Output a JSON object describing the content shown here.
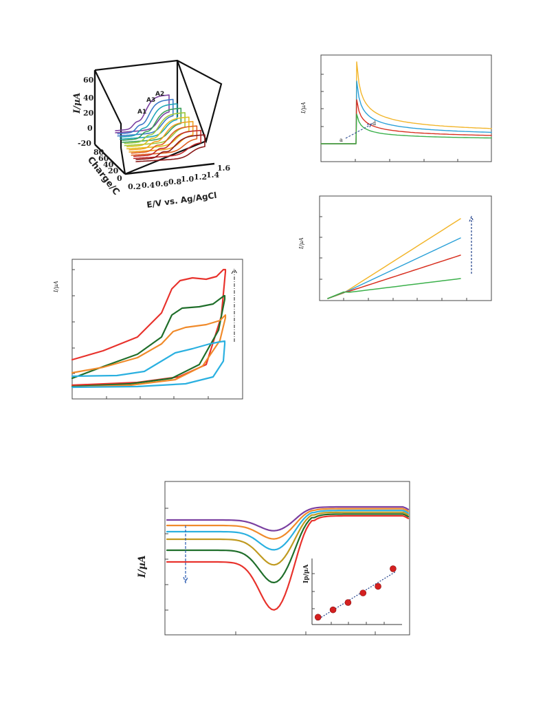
{
  "chart_data": [
    {
      "id": "panel-3d",
      "type": "line",
      "title": "",
      "ylabel": "I/µA",
      "xlabel": "E/V vs. Ag/AgCl",
      "zlabel": "Charge/C",
      "y_ticks": [
        "60",
        "40",
        "20",
        "0",
        "-20"
      ],
      "x_ticks": [
        "0.2",
        "0.4",
        "0.6",
        "0.8",
        "1.0",
        "1.2",
        "1.4",
        "1.6"
      ],
      "z_ticks": [
        "80",
        "60",
        "40",
        "20",
        "0"
      ],
      "annotations": [
        "A1",
        "A2",
        "A3"
      ],
      "series_colors": [
        "#7a3fa0",
        "#3a78c8",
        "#1fa6b8",
        "#3aa05a",
        "#9cc83a",
        "#e0c020",
        "#f0a020",
        "#e06020",
        "#c02828",
        "#8a1818"
      ]
    },
    {
      "id": "panel-cv",
      "type": "line",
      "ylabel": "I/µA",
      "series_colors": [
        "#e8322c",
        "#1f6e2a",
        "#f08a2a",
        "#2ab0e0"
      ]
    },
    {
      "id": "panel-chrono",
      "type": "line",
      "ylabel": "I/µA",
      "annotations": [
        "a",
        "d"
      ],
      "series_colors": [
        "#f2b52a",
        "#2aa0d8",
        "#d83020",
        "#3ab04a"
      ]
    },
    {
      "id": "panel-cottrell",
      "type": "line",
      "ylabel": "I/µA",
      "series_colors": [
        "#f2b52a",
        "#2aa0d8",
        "#d83020",
        "#3ab04a"
      ]
    },
    {
      "id": "panel-dpv",
      "type": "line",
      "ylabel": "I/µA",
      "series_colors": [
        "#7a3fa0",
        "#f08a2a",
        "#2ab0e0",
        "#c09a20",
        "#1f6e2a",
        "#e8322c"
      ],
      "inset": {
        "type": "scatter",
        "ylabel": "Ip/µA",
        "x": [
          1,
          2,
          3,
          4,
          5,
          6
        ],
        "values": [
          1.0,
          2.0,
          3.0,
          4.3,
          5.2,
          7.6
        ],
        "color": "#d42020"
      }
    }
  ]
}
